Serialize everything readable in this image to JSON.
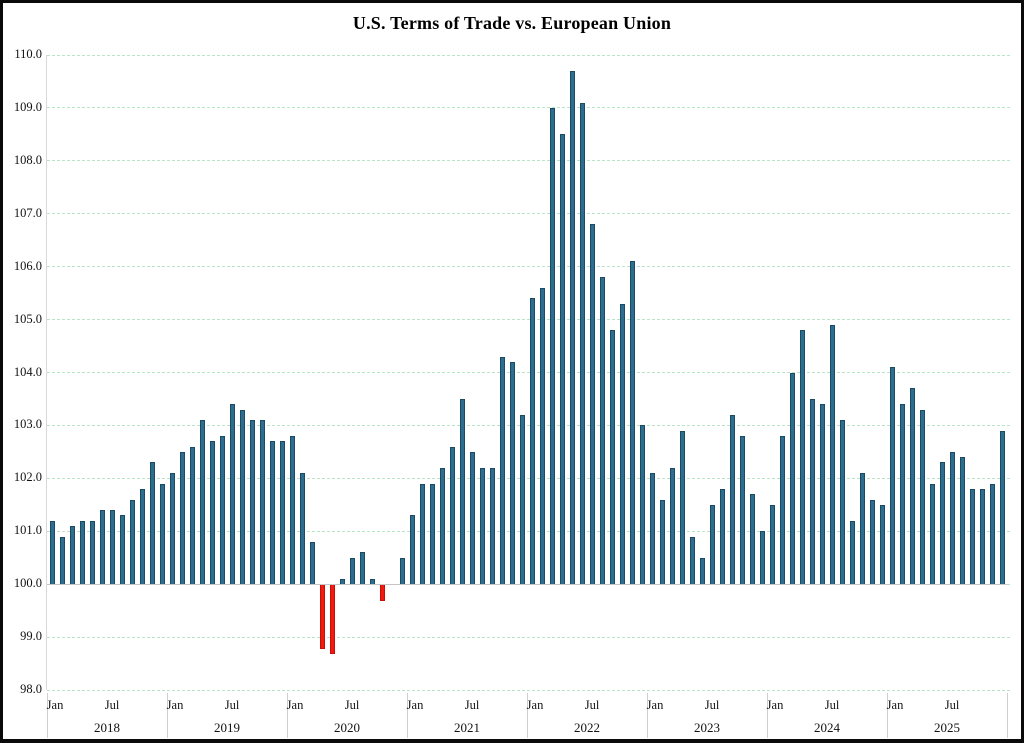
{
  "title": "U.S. Terms of Trade vs. European Union",
  "chart_data": {
    "type": "bar",
    "title": "U.S. Terms of Trade vs. European Union",
    "xlabel": "",
    "ylabel": "",
    "ylim": [
      98.0,
      110.0
    ],
    "ytick_labels": [
      "110.0",
      "109.0",
      "108.0",
      "107.0",
      "106.0",
      "105.0",
      "104.0",
      "103.0",
      "102.0",
      "101.0",
      "100.0",
      "99.0",
      "98.0"
    ],
    "baseline_value": 100.0,
    "grid": "horizontal dashed light-green gridlines at each 1.0",
    "legend_position": "none",
    "month_tick_labels": [
      "Jan",
      "Jul"
    ],
    "years": [
      "2018",
      "2019",
      "2020",
      "2021",
      "2022",
      "2023",
      "2024",
      "2025"
    ],
    "series_by_year": [
      {
        "year": "2018",
        "values": [
          101.2,
          100.9,
          101.1,
          101.2,
          101.2,
          101.4,
          101.4,
          101.3,
          101.6,
          101.8,
          102.3,
          101.9
        ]
      },
      {
        "year": "2019",
        "values": [
          102.1,
          102.5,
          102.6,
          103.1,
          102.7,
          102.8,
          103.4,
          103.3,
          103.1,
          103.1,
          102.7,
          102.7
        ]
      },
      {
        "year": "2020",
        "values": [
          102.8,
          102.1,
          100.8,
          98.8,
          98.7,
          100.1,
          100.5,
          100.6,
          100.1,
          99.7,
          100.0,
          100.5
        ]
      },
      {
        "year": "2021",
        "values": [
          101.3,
          101.9,
          101.9,
          102.2,
          102.6,
          103.5,
          102.5,
          102.2,
          102.2,
          104.3,
          104.2,
          103.2
        ]
      },
      {
        "year": "2022",
        "values": [
          105.4,
          105.6,
          109.0,
          108.5,
          109.7,
          109.1,
          106.8,
          105.8,
          104.8,
          105.3,
          106.1,
          103.0
        ]
      },
      {
        "year": "2023",
        "values": [
          102.1,
          101.6,
          102.2,
          102.9,
          100.9,
          100.5,
          101.5,
          101.8,
          103.2,
          102.8,
          101.7,
          101.0
        ]
      },
      {
        "year": "2024",
        "values": [
          101.5,
          102.8,
          104.0,
          104.8,
          103.5,
          103.4,
          104.9,
          103.1,
          101.2,
          102.1,
          101.6,
          101.5
        ]
      },
      {
        "year": "2025",
        "values": [
          104.1,
          103.4,
          103.7,
          103.3,
          101.9,
          102.3,
          102.5,
          102.4,
          101.8,
          101.8,
          101.9,
          102.9
        ]
      }
    ],
    "colors": {
      "bar_above_100": "#2d6e90",
      "bar_above_100_border": "#1b4a63",
      "bar_below_100": "#f21a10",
      "bar_below_100_border": "#c41108",
      "gridline": "#b9e4c6",
      "baseline_100": "#c6c6c6",
      "axis_separator": "#cfcfcf",
      "frame": "#0a0a0a",
      "background": "#ffffff"
    }
  }
}
